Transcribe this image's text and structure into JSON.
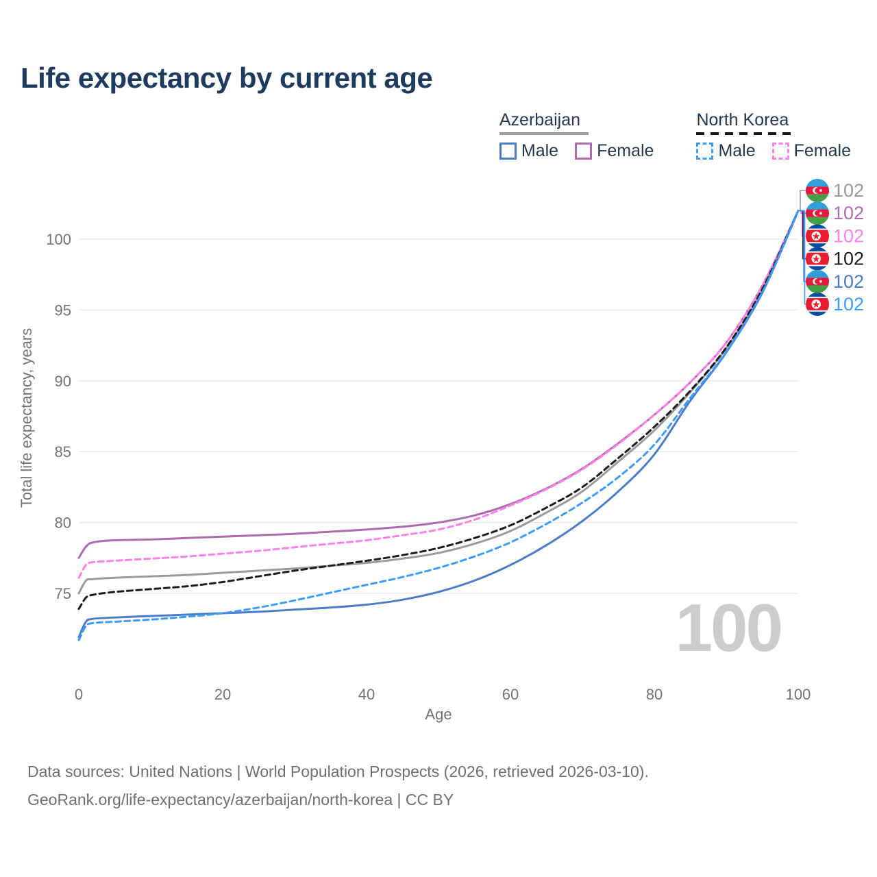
{
  "title": "Life expectancy by current age",
  "watermark": "100",
  "legend": {
    "groups": [
      {
        "id": "azerbaijan",
        "label": "Azerbaijan",
        "underline": "solid",
        "underline_color": "#9e9e9e",
        "items": [
          {
            "label": "Male",
            "color": "#4d7cc7",
            "dashed": false
          },
          {
            "label": "Female",
            "color": "#ad6cad",
            "dashed": false
          }
        ]
      },
      {
        "id": "north-korea",
        "label": "North Korea",
        "underline": "dashed",
        "underline_color": "#161616",
        "items": [
          {
            "label": "Male",
            "color": "#3e9bfe",
            "dashed": true
          },
          {
            "label": "Female",
            "color": "#ff80e8",
            "dashed": true
          }
        ]
      }
    ]
  },
  "footer": {
    "line1": "Data sources: United Nations | World Population Prospects (2026, retrieved 2026-03-10).",
    "line2": "GeoRank.org/life-expectancy/azerbaijan/north-korea | CC BY"
  },
  "chart_data": {
    "type": "line",
    "title": "Life expectancy by current age",
    "xlabel": "Age",
    "ylabel": "Total life expectancy, years",
    "xlim": [
      0,
      100
    ],
    "ylim": [
      71,
      103
    ],
    "xticks": [
      0,
      20,
      40,
      60,
      80,
      100
    ],
    "yticks": [
      75,
      80,
      85,
      90,
      95,
      100
    ],
    "grid": "horizontal",
    "legend_position": "top-right",
    "ages": [
      0,
      1,
      2,
      5,
      10,
      15,
      20,
      25,
      30,
      35,
      40,
      45,
      50,
      55,
      60,
      65,
      70,
      75,
      80,
      85,
      90,
      95,
      100
    ],
    "series": [
      {
        "name": "Azerbaijan Female",
        "country": "azerbaijan",
        "sex": "female",
        "color": "#ad6cad",
        "dashed": false,
        "values": [
          77.5,
          78.3,
          78.6,
          78.75,
          78.8,
          78.9,
          79.0,
          79.1,
          79.2,
          79.35,
          79.5,
          79.7,
          80.0,
          80.5,
          81.3,
          82.4,
          83.8,
          85.6,
          87.6,
          89.9,
          92.7,
          96.7,
          102
        ]
      },
      {
        "name": "North Korea Female",
        "country": "north-korea",
        "sex": "female",
        "color": "#ff80e8",
        "dashed": true,
        "values": [
          76.1,
          77.0,
          77.2,
          77.3,
          77.45,
          77.6,
          77.8,
          78.0,
          78.25,
          78.5,
          78.75,
          79.1,
          79.5,
          80.2,
          81.2,
          82.35,
          83.75,
          85.55,
          87.6,
          89.9,
          92.7,
          96.7,
          102
        ]
      },
      {
        "name": "Azerbaijan Total",
        "country": "azerbaijan",
        "sex": "total",
        "color": "#9a9a9a",
        "dashed": false,
        "values": [
          75.0,
          75.9,
          76.0,
          76.1,
          76.2,
          76.3,
          76.45,
          76.6,
          76.75,
          76.95,
          77.15,
          77.45,
          77.85,
          78.5,
          79.4,
          80.7,
          82.2,
          84.3,
          86.5,
          89.2,
          92.3,
          96.4,
          102
        ]
      },
      {
        "name": "North Korea Total",
        "country": "north-korea",
        "sex": "total",
        "color": "#1c1c1c",
        "dashed": true,
        "values": [
          73.9,
          74.7,
          74.9,
          75.1,
          75.3,
          75.5,
          75.8,
          76.2,
          76.6,
          76.95,
          77.3,
          77.7,
          78.2,
          78.9,
          79.8,
          81.05,
          82.5,
          84.55,
          86.75,
          89.3,
          92.35,
          96.45,
          102
        ]
      },
      {
        "name": "Azerbaijan Male",
        "country": "azerbaijan",
        "sex": "male",
        "color": "#4d7cc7",
        "dashed": false,
        "values": [
          71.9,
          73.0,
          73.2,
          73.3,
          73.4,
          73.5,
          73.6,
          73.7,
          73.85,
          74.0,
          74.2,
          74.55,
          75.1,
          75.9,
          77.0,
          78.4,
          80.1,
          82.2,
          84.8,
          88.6,
          92.0,
          96.2,
          102
        ]
      },
      {
        "name": "North Korea Male",
        "country": "north-korea",
        "sex": "male",
        "color": "#3e9bfe",
        "dashed": true,
        "values": [
          71.7,
          72.7,
          72.9,
          73.0,
          73.15,
          73.35,
          73.6,
          74.0,
          74.5,
          75.05,
          75.6,
          76.15,
          76.8,
          77.6,
          78.6,
          79.9,
          81.4,
          83.2,
          85.5,
          88.8,
          92.05,
          96.25,
          102
        ]
      }
    ],
    "end_labels": [
      {
        "country": "azerbaijan",
        "series": "Azerbaijan Total",
        "value": "102",
        "color": "#9a9a9a"
      },
      {
        "country": "azerbaijan",
        "series": "Azerbaijan Female",
        "value": "102",
        "color": "#ad6cad"
      },
      {
        "country": "north-korea",
        "series": "North Korea Female",
        "value": "102",
        "color": "#ff80e8"
      },
      {
        "country": "north-korea",
        "series": "North Korea Total",
        "value": "102",
        "color": "#1c1c1c"
      },
      {
        "country": "azerbaijan",
        "series": "Azerbaijan Male",
        "value": "102",
        "color": "#4d7cc7"
      },
      {
        "country": "north-korea",
        "series": "North Korea Male",
        "value": "102",
        "color": "#3e9bfe"
      }
    ],
    "flag_colors": {
      "azerbaijan": {
        "blue": "#2f9fd8",
        "red": "#e51940",
        "green": "#44a147",
        "emblem": "#ffffff"
      },
      "north_korea": {
        "blue": "#0a4ea2",
        "red": "#eb1c2d",
        "white": "#ffffff"
      }
    }
  }
}
